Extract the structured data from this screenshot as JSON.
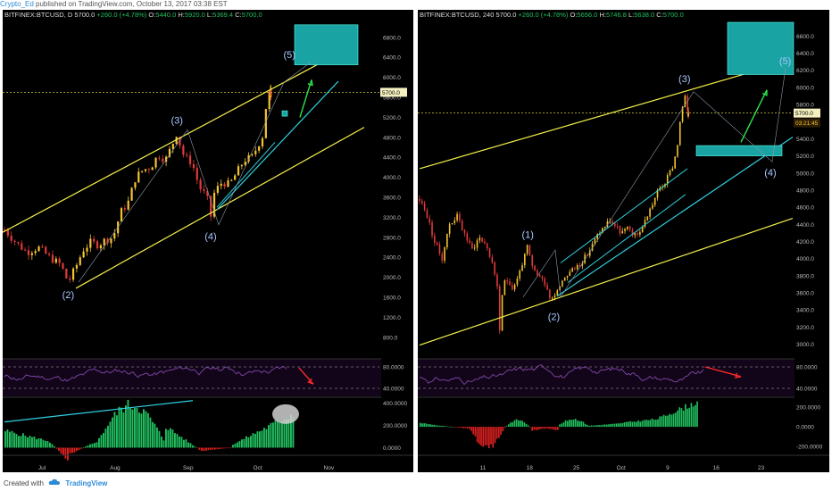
{
  "header": {
    "author": "Crypto_Ed",
    "published_text": "published on TradingView.com, October 13, 2017 03:38 EST"
  },
  "footer": {
    "created_with": "Created with",
    "brand": "TradingView"
  },
  "colors": {
    "background": "#000000",
    "candle_up": "#f4c430",
    "candle_down": "#e03a3a",
    "channel": "#f5f04a",
    "trendline": "#2fd0e0",
    "target_box": "#1aa3a3",
    "arrow_green": "#2ee64a",
    "arrow_red": "#ff2a2a",
    "rsi_line": "#8a4fb8",
    "macd_up": "#21c05f",
    "macd_down": "#e02020",
    "wave_label": "#a9c8ff"
  },
  "icons": [
    "tradingview-cloud-icon"
  ],
  "chart_data": [
    {
      "type": "candlestick",
      "symbol": "BITFINEX:BTCUSD",
      "interval": "D",
      "ohlc_header": {
        "last": "5700.0",
        "change": "+260.0 (+4.78%)",
        "open": "5440.0",
        "high": "5920.0",
        "low": "5369.4",
        "close": "5700.0"
      },
      "price_label": "5700.0",
      "y_ticks": [
        "800.0",
        "1200.0",
        "1600.0",
        "2000.0",
        "2400.0",
        "2800.0",
        "3200.0",
        "3600.0",
        "4000.0",
        "4400.0",
        "4800.0",
        "5200.0",
        "5600.0",
        "6000.0",
        "6400.0",
        "6800.0"
      ],
      "ylim": [
        600,
        7100
      ],
      "x_ticks": [
        "Jul",
        "Aug",
        "Sep",
        "Oct",
        "Nov"
      ],
      "wave_labels": [
        {
          "label": "(2)",
          "t": 0.17,
          "price": 1830
        },
        {
          "label": "(3)",
          "t": 0.46,
          "price": 4980
        },
        {
          "label": "(4)",
          "t": 0.55,
          "price": 3000
        },
        {
          "label": "(5)",
          "t": 0.76,
          "price": 6300
        }
      ],
      "close_path": [
        [
          0.0,
          2950
        ],
        [
          0.03,
          2700
        ],
        [
          0.06,
          2500
        ],
        [
          0.09,
          2600
        ],
        [
          0.12,
          2400
        ],
        [
          0.15,
          2250
        ],
        [
          0.17,
          1900
        ],
        [
          0.19,
          2200
        ],
        [
          0.21,
          2550
        ],
        [
          0.23,
          2700
        ],
        [
          0.25,
          2650
        ],
        [
          0.27,
          2750
        ],
        [
          0.29,
          2800
        ],
        [
          0.31,
          3300
        ],
        [
          0.33,
          3500
        ],
        [
          0.35,
          4000
        ],
        [
          0.37,
          4150
        ],
        [
          0.39,
          4200
        ],
        [
          0.41,
          4450
        ],
        [
          0.43,
          4350
        ],
        [
          0.45,
          4700
        ],
        [
          0.46,
          4900
        ],
        [
          0.47,
          4600
        ],
        [
          0.48,
          4400
        ],
        [
          0.5,
          4300
        ],
        [
          0.52,
          3800
        ],
        [
          0.54,
          3600
        ],
        [
          0.55,
          3200
        ],
        [
          0.56,
          3700
        ],
        [
          0.58,
          3900
        ],
        [
          0.6,
          3850
        ],
        [
          0.62,
          4100
        ],
        [
          0.64,
          4350
        ],
        [
          0.66,
          4400
        ],
        [
          0.68,
          4700
        ],
        [
          0.69,
          4850
        ],
        [
          0.7,
          5600
        ],
        [
          0.71,
          5700
        ]
      ],
      "rsi": {
        "upper_label": "80.0000",
        "lower_label": "40.0000",
        "ylim": [
          25,
          95
        ]
      },
      "macd": {
        "ticks": [
          "0.0000",
          "200.0000",
          "400.0000"
        ],
        "ylim": [
          -60,
          450
        ]
      }
    },
    {
      "type": "candlestick",
      "symbol": "BITFINEX:BTCUSD",
      "interval": "240",
      "ohlc_header": {
        "last": "5700.0",
        "change": "+260.0 (+4.78%)",
        "open": "5656.0",
        "high": "5746.8",
        "low": "5638.0",
        "close": "5700.0"
      },
      "price_label": "5700.0",
      "countdown_label": "03:21:45",
      "y_ticks": [
        "3000.0",
        "3200.0",
        "3400.0",
        "3600.0",
        "3800.0",
        "4000.0",
        "4200.0",
        "4400.0",
        "4600.0",
        "4800.0",
        "5000.0",
        "5200.0",
        "5400.0",
        "5600.0",
        "5800.0",
        "6000.0",
        "6200.0",
        "6400.0",
        "6600.0"
      ],
      "ylim": [
        2860,
        6760
      ],
      "x_ticks": [
        "11",
        "18",
        "25",
        "Oct",
        "9",
        "16",
        "23"
      ],
      "wave_labels": [
        {
          "label": "(1)",
          "t": 0.29,
          "price": 4200
        },
        {
          "label": "(2)",
          "t": 0.36,
          "price": 3420
        },
        {
          "label": "(3)",
          "t": 0.71,
          "price": 6020
        },
        {
          "label": "(4)",
          "t": 0.94,
          "price": 5100
        },
        {
          "label": "(5)",
          "t": 0.98,
          "price": 6230
        }
      ],
      "close_path": [
        [
          0.0,
          4700
        ],
        [
          0.02,
          4500
        ],
        [
          0.04,
          4200
        ],
        [
          0.06,
          4000
        ],
        [
          0.08,
          4400
        ],
        [
          0.1,
          4500
        ],
        [
          0.12,
          4300
        ],
        [
          0.14,
          4100
        ],
        [
          0.16,
          4250
        ],
        [
          0.18,
          4150
        ],
        [
          0.2,
          3850
        ],
        [
          0.21,
          3650
        ],
        [
          0.215,
          3100
        ],
        [
          0.22,
          3500
        ],
        [
          0.23,
          3800
        ],
        [
          0.25,
          3650
        ],
        [
          0.26,
          3750
        ],
        [
          0.28,
          4000
        ],
        [
          0.29,
          4150
        ],
        [
          0.3,
          3900
        ],
        [
          0.32,
          3800
        ],
        [
          0.34,
          3700
        ],
        [
          0.35,
          3520
        ],
        [
          0.37,
          3650
        ],
        [
          0.39,
          3800
        ],
        [
          0.42,
          3900
        ],
        [
          0.45,
          4050
        ],
        [
          0.48,
          4300
        ],
        [
          0.51,
          4450
        ],
        [
          0.54,
          4300
        ],
        [
          0.56,
          4350
        ],
        [
          0.58,
          4250
        ],
        [
          0.6,
          4400
        ],
        [
          0.62,
          4600
        ],
        [
          0.64,
          4800
        ],
        [
          0.66,
          4900
        ],
        [
          0.68,
          5100
        ],
        [
          0.69,
          5300
        ],
        [
          0.7,
          5650
        ],
        [
          0.71,
          5900
        ],
        [
          0.72,
          5700
        ]
      ],
      "rsi": {
        "upper_label": "80.0000",
        "lower_label": "40.0000",
        "ylim": [
          25,
          95
        ]
      },
      "macd": {
        "ticks": [
          "-200.0000",
          "0.0000",
          "200.0000"
        ],
        "ylim": [
          -280,
          300
        ]
      }
    }
  ]
}
